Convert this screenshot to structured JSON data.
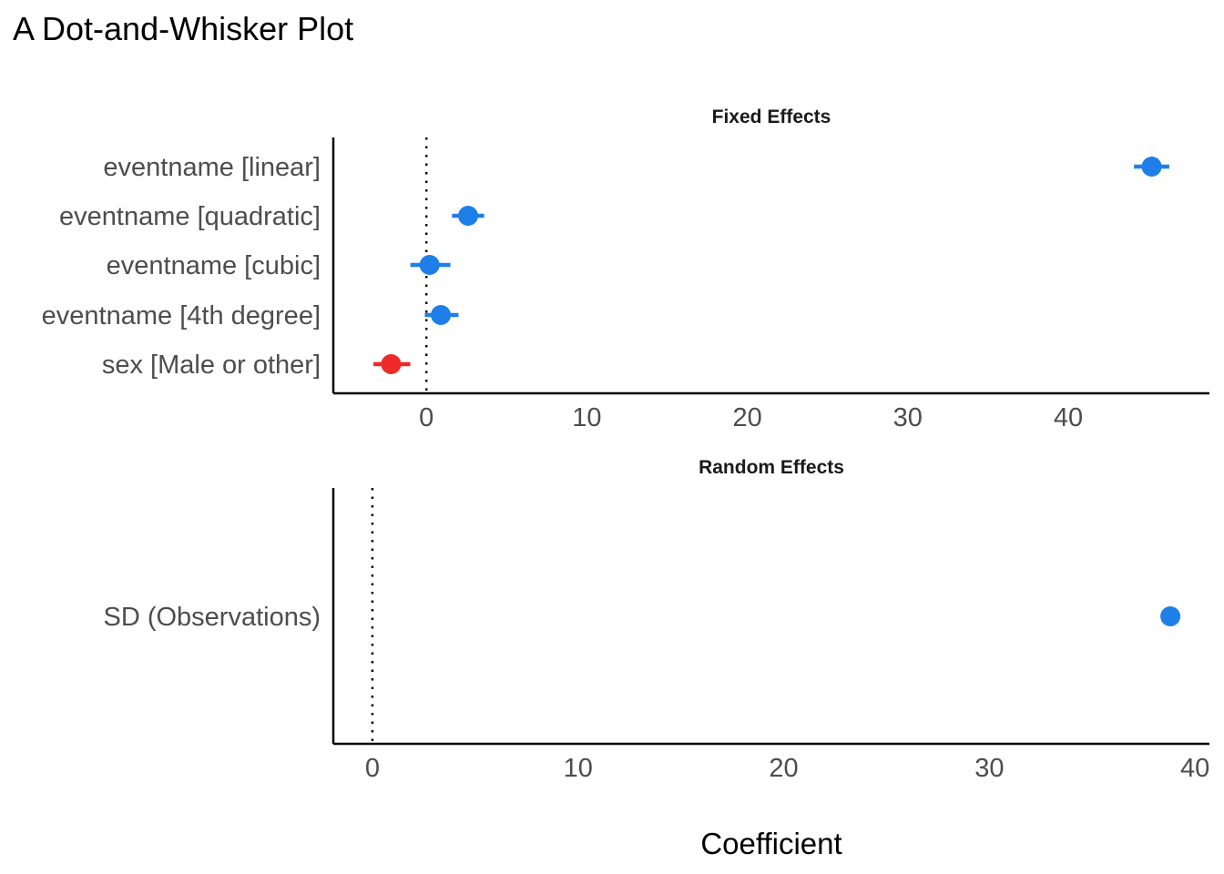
{
  "chart_data": {
    "type": "scatter",
    "subtype": "dot-and-whisker",
    "title": "A Dot-and-Whisker Plot",
    "xlabel": "Coefficient",
    "reference_line": 0,
    "colors": {
      "positive": "#1f7fe8",
      "negative": "#ee2a2a"
    },
    "grid": false,
    "panels": [
      {
        "name": "Fixed Effects",
        "xlim": [
          -5.8,
          48.8
        ],
        "xticks": [
          0,
          10,
          20,
          30,
          40
        ],
        "xtick_labels": [
          "0",
          "10",
          "20",
          "30",
          "40"
        ],
        "terms": [
          {
            "label": "eventname [linear]",
            "estimate": 45.2,
            "ci": [
              44.1,
              46.3
            ],
            "sign": "positive"
          },
          {
            "label": "eventname [quadratic]",
            "estimate": 2.6,
            "ci": [
              1.6,
              3.6
            ],
            "sign": "positive"
          },
          {
            "label": "eventname [cubic]",
            "estimate": 0.2,
            "ci": [
              -1.0,
              1.5
            ],
            "sign": "positive"
          },
          {
            "label": "eventname [4th degree]",
            "estimate": 0.9,
            "ci": [
              -0.1,
              2.0
            ],
            "sign": "positive"
          },
          {
            "label": "sex [Male or other]",
            "estimate": -2.2,
            "ci": [
              -3.3,
              -1.0
            ],
            "sign": "negative"
          }
        ]
      },
      {
        "name": "Random Effects",
        "xlim": [
          -1.9,
          40.7
        ],
        "xticks": [
          0,
          10,
          20,
          30,
          40
        ],
        "xtick_labels": [
          "0",
          "10",
          "20",
          "30",
          "40"
        ],
        "terms": [
          {
            "label": "SD (Observations)",
            "estimate": 38.8,
            "ci": null,
            "sign": "positive"
          }
        ]
      }
    ]
  }
}
